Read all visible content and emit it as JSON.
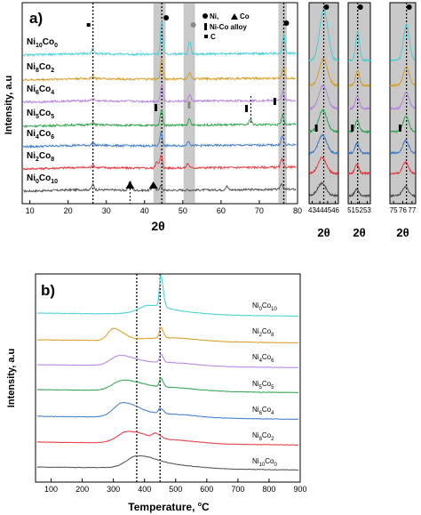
{
  "chart_data": [
    {
      "type": "line",
      "panel_label": "a)",
      "xlabel": "2θ",
      "ylabel": "Intensity, a.u",
      "xlim": [
        8,
        80
      ],
      "xticks": [
        10,
        20,
        30,
        40,
        50,
        60,
        70,
        80
      ],
      "grid": false,
      "legend": {
        "placement": "top-right",
        "entries": [
          {
            "marker": "circle",
            "label": "Ni,"
          },
          {
            "marker": "triangle",
            "label": "Co"
          },
          {
            "marker": "rect",
            "label": "Ni-Co alloy"
          },
          {
            "marker": "square",
            "label": "C"
          }
        ]
      },
      "reference_lines_x": [
        26.5,
        44.5,
        76.4
      ],
      "shaded_bands_x": [
        [
          42.3,
          45.5
        ],
        [
          50.2,
          53.2
        ],
        [
          75.0,
          77.2
        ]
      ],
      "series": [
        {
          "name": "Ni0Co10",
          "name_html": "Ni<tspan font-size='7' dy='3'>0</tspan><tspan dy='-3'>Co</tspan><tspan font-size='7' dy='3'>10</tspan>",
          "color": "#4d4d4d",
          "peaks": [
            [
              26.5,
              1.2
            ],
            [
              36.2,
              2.2
            ],
            [
              42.3,
              1.6
            ],
            [
              44.2,
              1.0
            ],
            [
              61.5,
              0.8
            ],
            [
              75.8,
              1.4
            ]
          ]
        },
        {
          "name": "Ni2Co8",
          "name_html": "Ni<tspan font-size='7' dy='3'>2</tspan><tspan dy='-3'>Co</tspan><tspan font-size='7' dy='3'>8</tspan>",
          "color": "#e8333a",
          "peaks": [
            [
              26.5,
              0.6
            ],
            [
              43.2,
              1.6
            ],
            [
              44.3,
              2.8
            ],
            [
              51.3,
              1.0
            ],
            [
              75.9,
              1.8
            ]
          ]
        },
        {
          "name": "Ni4Co6",
          "name_html": "Ni<tspan font-size='7' dy='3'>4</tspan><tspan dy='-3'>Co</tspan><tspan font-size='7' dy='3'>6</tspan>",
          "color": "#3a78c9",
          "peaks": [
            [
              26.5,
              0.5
            ],
            [
              44.3,
              3.0
            ],
            [
              51.5,
              1.1
            ],
            [
              76.0,
              2.0
            ]
          ]
        },
        {
          "name": "Ni5Co5",
          "name_html": "Ni<tspan font-size='7' dy='3'>5</tspan><tspan dy='-3'>Co</tspan><tspan font-size='7' dy='3'>5</tspan>",
          "color": "#2aa34a",
          "peaks": [
            [
              26.5,
              0.5
            ],
            [
              44.4,
              3.6
            ],
            [
              51.7,
              1.3
            ],
            [
              67.7,
              1.4
            ],
            [
              76.1,
              2.2
            ]
          ]
        },
        {
          "name": "Ni6Co4",
          "name_html": "Ni<tspan font-size='7' dy='3'>6</tspan><tspan dy='-3'>Co</tspan><tspan font-size='7' dy='3'>4</tspan>",
          "color": "#b67ee0",
          "peaks": [
            [
              26.5,
              0.5
            ],
            [
              44.5,
              4.0
            ],
            [
              51.8,
              1.4
            ],
            [
              76.2,
              2.3
            ]
          ]
        },
        {
          "name": "Ni8Co2",
          "name_html": "Ni<tspan font-size='7' dy='3'>8</tspan><tspan dy='-3'>Co</tspan><tspan font-size='7' dy='3'>2</tspan>",
          "color": "#d99a1e",
          "peaks": [
            [
              26.5,
              0.6
            ],
            [
              44.5,
              4.6
            ],
            [
              51.8,
              1.5
            ],
            [
              76.3,
              2.5
            ]
          ]
        },
        {
          "name": "Ni10Co0",
          "name_html": "Ni<tspan font-size='7' dy='3'>10</tspan><tspan dy='-3'>Co</tspan><tspan font-size='7' dy='3'>0</tspan>",
          "color": "#3fcfd6",
          "peaks": [
            [
              26.5,
              1.2
            ],
            [
              44.5,
              7.5
            ],
            [
              51.8,
              2.8
            ],
            [
              76.4,
              4.2
            ]
          ]
        }
      ]
    },
    {
      "type": "line",
      "panel_label": "",
      "xlabel": "2θ",
      "xticks": [
        43,
        44,
        45,
        46
      ],
      "xlim": [
        42.6,
        46.4
      ]
    },
    {
      "type": "line",
      "panel_label": "",
      "xlabel": "2θ",
      "xticks": [
        51,
        52,
        53
      ],
      "xlim": [
        50.6,
        53.4
      ]
    },
    {
      "type": "line",
      "panel_label": "",
      "xlabel": "2θ",
      "xticks": [
        75,
        76,
        77
      ],
      "xlim": [
        74.6,
        77.4
      ]
    },
    {
      "type": "line",
      "panel_label": "b)",
      "xlabel": "Temperature, °C",
      "xlabel_html": "Temperature, <tspan font-size='7' dy='-5'>o</tspan><tspan dy='5'>C</tspan>",
      "ylabel": "Intensity, a.u",
      "xlim": [
        50,
        900
      ],
      "xticks": [
        100,
        200,
        300,
        400,
        500,
        600,
        700,
        800,
        900
      ],
      "grid": false,
      "reference_lines_x": [
        375,
        450
      ],
      "series": [
        {
          "name": "Ni10Co0",
          "name_html": "Ni<tspan font-size='7' dy='3'>10</tspan><tspan dy='-3'>Co</tspan><tspan font-size='7' dy='3'>0</tspan>",
          "color": "#4d4d4d",
          "peaks": [
            [
              375,
              1.0,
              45
            ]
          ]
        },
        {
          "name": "Ni8Co2",
          "name_html": "Ni<tspan font-size='7' dy='3'>8</tspan><tspan dy='-3'>Co</tspan><tspan font-size='7' dy='3'>2</tspan>",
          "color": "#e8333a",
          "peaks": [
            [
              345,
              1.0,
              45
            ],
            [
              435,
              0.4,
              12
            ]
          ]
        },
        {
          "name": "Ni6Co4",
          "name_html": "Ni<tspan font-size='7' dy='3'>6</tspan><tspan dy='-3'>Co</tspan><tspan font-size='7' dy='3'>4</tspan>",
          "color": "#3a78c9",
          "peaks": [
            [
              330,
              1.3,
              40
            ],
            [
              450,
              0.5,
              8
            ]
          ]
        },
        {
          "name": "Ni5Co5",
          "name_html": "Ni<tspan font-size='7' dy='3'>5</tspan><tspan dy='-3'>Co</tspan><tspan font-size='7' dy='3'>5</tspan>",
          "color": "#2aa34a",
          "peaks": [
            [
              330,
              0.9,
              45
            ],
            [
              452,
              0.8,
              6
            ]
          ]
        },
        {
          "name": "Ni4Co6",
          "name_html": "Ni<tspan font-size='7' dy='3'>4</tspan><tspan dy='-3'>Co</tspan><tspan font-size='7' dy='3'>6</tspan>",
          "color": "#b67ee0",
          "peaks": [
            [
              320,
              0.9,
              40
            ],
            [
              452,
              0.8,
              6
            ]
          ]
        },
        {
          "name": "Ni2Co8",
          "name_html": "Ni<tspan font-size='7' dy='3'>2</tspan><tspan dy='-3'>Co</tspan><tspan font-size='7' dy='3'>8</tspan>",
          "color": "#d99a1e",
          "peaks": [
            [
              300,
              1.1,
              25
            ],
            [
              452,
              1.0,
              6
            ]
          ]
        },
        {
          "name": "Ni0Co10",
          "name_html": "Ni<tspan font-size='7' dy='3'>0</tspan><tspan dy='-3'>Co</tspan><tspan font-size='7' dy='3'>10</tspan>",
          "color": "#3fcfd6",
          "peaks": [
            [
              410,
              0.6,
              40
            ],
            [
              452,
              3.0,
              6
            ]
          ]
        }
      ]
    }
  ]
}
